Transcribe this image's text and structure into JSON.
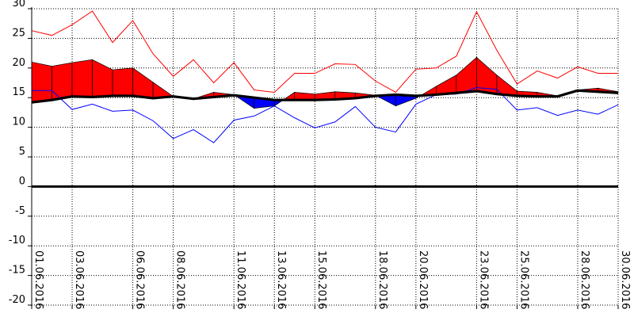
{
  "chart_data": {
    "type": "line",
    "title": "",
    "xlabel": "",
    "ylabel": "",
    "ylim": [
      -20,
      30
    ],
    "y_ticks": [
      30,
      25,
      20,
      15,
      10,
      5,
      0,
      -5,
      -10,
      -15,
      -20
    ],
    "y_tick_labels": [
      "30",
      "25",
      "20",
      "15",
      "10",
      "5",
      "0",
      "-5",
      "-10",
      "-15",
      "-20"
    ],
    "x_range": [
      "01.06.2016",
      "30.06.2016"
    ],
    "x_tick_labels": [
      "01.06.2016",
      "03.06.2016",
      "06.06.2016",
      "08.06.2016",
      "11.06.2016",
      "13.06.2016",
      "15.06.2016",
      "18.06.2016",
      "20.06.2016",
      "23.06.2016",
      "25.06.2016",
      "28.06.2016",
      "30.06.2016"
    ],
    "x": [
      "01.06.2016",
      "02.06.2016",
      "03.06.2016",
      "04.06.2016",
      "05.06.2016",
      "06.06.2016",
      "07.06.2016",
      "08.06.2016",
      "09.06.2016",
      "10.06.2016",
      "11.06.2016",
      "12.06.2016",
      "13.06.2016",
      "14.06.2016",
      "15.06.2016",
      "16.06.2016",
      "17.06.2016",
      "18.06.2016",
      "19.06.2016",
      "20.06.2016",
      "21.06.2016",
      "22.06.2016",
      "23.06.2016",
      "24.06.2016",
      "25.06.2016",
      "26.06.2016",
      "27.06.2016",
      "28.06.2016",
      "29.06.2016",
      "30.06.2016"
    ],
    "grid": true,
    "series": [
      {
        "key": "max",
        "color": "#ff0000",
        "style": "line",
        "values": [
          26.3,
          25.5,
          27.3,
          29.6,
          24.3,
          28.0,
          22.4,
          18.6,
          21.4,
          17.5,
          20.9,
          16.3,
          15.9,
          19.1,
          19.1,
          20.7,
          20.6,
          17.8,
          15.9,
          19.8,
          20.0,
          22.0,
          29.5,
          23.0,
          17.3,
          19.5,
          18.3,
          20.2,
          19.1,
          19.1
        ]
      },
      {
        "key": "min",
        "color": "#0000ff",
        "style": "line",
        "values": [
          16.2,
          16.2,
          13.0,
          13.9,
          12.7,
          12.9,
          11.1,
          8.1,
          9.6,
          7.4,
          11.2,
          11.9,
          13.6,
          11.6,
          9.9,
          10.9,
          13.5,
          10.0,
          9.2,
          13.9,
          15.5,
          15.6,
          16.7,
          16.4,
          12.9,
          13.3,
          12.0,
          12.9,
          12.2,
          13.8
        ]
      },
      {
        "key": "mean",
        "color": "#ff0000",
        "style": "filled-area",
        "values": [
          21.0,
          20.3,
          20.9,
          21.4,
          19.7,
          20.0,
          17.6,
          15.2,
          14.8,
          15.9,
          15.5,
          13.2,
          13.6,
          15.9,
          15.6,
          16.0,
          15.8,
          15.4,
          13.6,
          14.9,
          16.9,
          18.8,
          21.8,
          18.8,
          16.1,
          15.9,
          15.3,
          16.3,
          16.6,
          16.0
        ]
      },
      {
        "key": "normal",
        "color": "#000000",
        "style": "thick-line",
        "values": [
          14.2,
          14.6,
          15.2,
          15.1,
          15.3,
          15.3,
          14.9,
          15.2,
          14.8,
          15.1,
          15.4,
          15.0,
          14.6,
          14.6,
          14.6,
          14.7,
          14.9,
          15.3,
          15.5,
          15.3,
          15.5,
          15.8,
          16.1,
          15.6,
          15.3,
          15.2,
          15.2,
          16.2,
          16.0,
          15.8
        ]
      }
    ],
    "fill_colors": {
      "above": "#ff0000",
      "below": "#0000ff"
    }
  }
}
